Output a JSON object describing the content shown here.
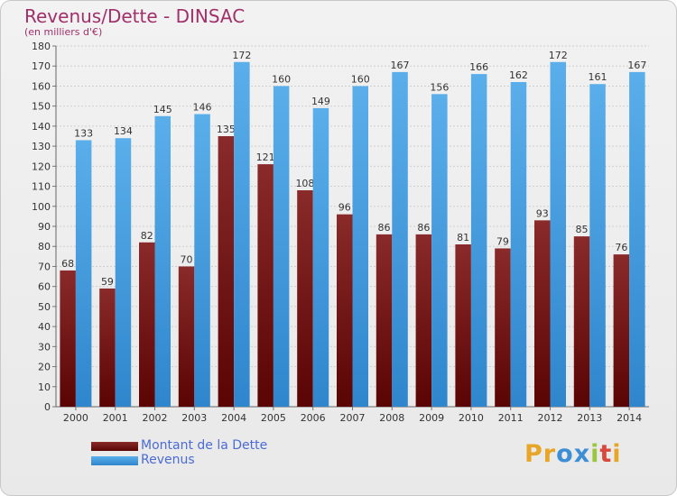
{
  "header": {
    "title": "Revenus/Dette - DINSAC",
    "subtitle": "(en milliers d'€)"
  },
  "legend": {
    "items": [
      {
        "label": "Montant de la Dette",
        "color": "#7a1717"
      },
      {
        "label": "Revenus",
        "color": "#4aa3e2"
      }
    ]
  },
  "logo": {
    "letters": [
      "P",
      "r",
      "o",
      "x",
      "i",
      "t",
      "i"
    ],
    "colors": [
      "#e8a628",
      "#e8a628",
      "#3c8fd6",
      "#3c8fd6",
      "#9ac640",
      "#d8483c",
      "#e8a628"
    ]
  },
  "chart_data": {
    "type": "bar",
    "title": "Revenus/Dette - DINSAC",
    "ylabel": "",
    "xlabel": "",
    "ylim": [
      0,
      180
    ],
    "yticks": [
      0,
      10,
      20,
      30,
      40,
      50,
      60,
      70,
      80,
      90,
      100,
      110,
      120,
      130,
      140,
      150,
      160,
      170,
      180
    ],
    "grid": true,
    "legend_position": "bottom-left",
    "categories": [
      "2000",
      "2001",
      "2002",
      "2003",
      "2004",
      "2005",
      "2006",
      "2007",
      "2008",
      "2009",
      "2010",
      "2011",
      "2012",
      "2013",
      "2014"
    ],
    "series": [
      {
        "name": "Montant de la Dette",
        "color": "#7a1717",
        "values": [
          68,
          59,
          82,
          70,
          135,
          121,
          108,
          96,
          86,
          86,
          81,
          79,
          93,
          85,
          76
        ]
      },
      {
        "name": "Revenus",
        "color": "#4aa3e2",
        "values": [
          133,
          134,
          145,
          146,
          172,
          160,
          149,
          160,
          167,
          156,
          166,
          162,
          172,
          161,
          167
        ]
      }
    ]
  }
}
